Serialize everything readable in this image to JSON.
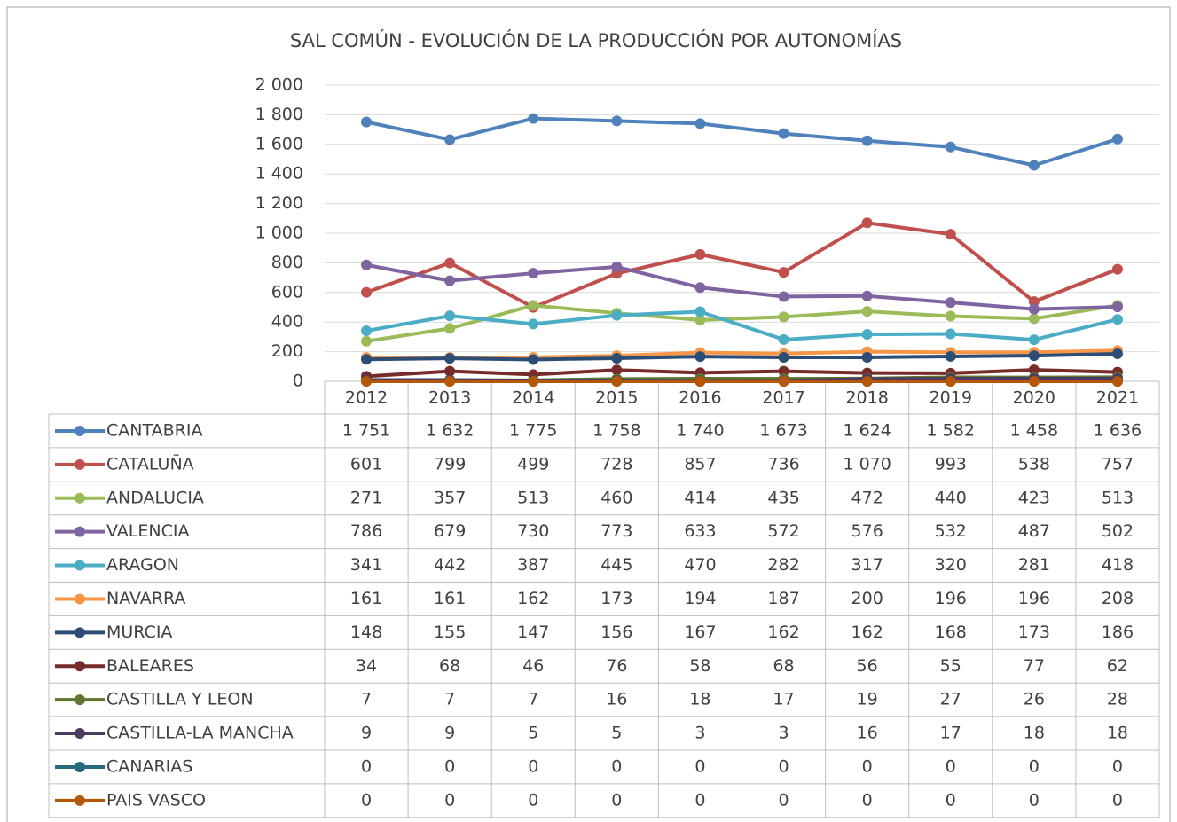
{
  "chart_data": {
    "type": "line",
    "title": "SAL COMÚN - EVOLUCIÓN DE LA PRODUCCIÓN POR AUTONOMÍAS",
    "categories": [
      "2012",
      "2013",
      "2014",
      "2015",
      "2016",
      "2017",
      "2018",
      "2019",
      "2020",
      "2021"
    ],
    "ylim": [
      0,
      2000
    ],
    "yticks": [
      0,
      {
        "value": 200,
        "label": "200"
      },
      {
        "value": 400,
        "label": "400"
      },
      {
        "value": 600,
        "label": "600"
      },
      {
        "value": 800,
        "label": "800"
      },
      {
        "value": 1000,
        "label": "1 000"
      },
      {
        "value": 1200,
        "label": "1 200"
      },
      {
        "value": 1400,
        "label": "1 400"
      },
      {
        "value": 1600,
        "label": "1 600"
      },
      {
        "value": 1800,
        "label": "1 800"
      },
      {
        "value": 2000,
        "label": "2 000"
      }
    ],
    "grid": true,
    "series": [
      {
        "name": "CANTABRIA",
        "color": "#4f81bd",
        "values": [
          1751,
          1632,
          1775,
          1758,
          1740,
          1673,
          1624,
          1582,
          1458,
          1636
        ],
        "value_labels": [
          "1 751",
          "1 632",
          "1 775",
          "1 758",
          "1 740",
          "1 673",
          "1 624",
          "1 582",
          "1 458",
          "1 636"
        ]
      },
      {
        "name": "CATALUÑA",
        "color": "#c0504d",
        "values": [
          601,
          799,
          499,
          728,
          857,
          736,
          1070,
          993,
          538,
          757
        ],
        "value_labels": [
          "601",
          "799",
          "499",
          "728",
          "857",
          "736",
          "1 070",
          "993",
          "538",
          "757"
        ]
      },
      {
        "name": "ANDALUCIA",
        "color": "#9bbb59",
        "values": [
          271,
          357,
          513,
          460,
          414,
          435,
          472,
          440,
          423,
          513
        ]
      },
      {
        "name": "VALENCIA",
        "color": "#8064a2",
        "values": [
          786,
          679,
          730,
          773,
          633,
          572,
          576,
          532,
          487,
          502
        ]
      },
      {
        "name": "ARAGON",
        "color": "#4bacc6",
        "values": [
          341,
          442,
          387,
          445,
          470,
          282,
          317,
          320,
          281,
          418
        ]
      },
      {
        "name": "NAVARRA",
        "color": "#f79646",
        "values": [
          161,
          161,
          162,
          173,
          194,
          187,
          200,
          196,
          196,
          208
        ]
      },
      {
        "name": "MURCIA",
        "color": "#2c4d75",
        "values": [
          148,
          155,
          147,
          156,
          167,
          162,
          162,
          168,
          173,
          186
        ]
      },
      {
        "name": "BALEARES",
        "color": "#772c2a",
        "values": [
          34,
          68,
          46,
          76,
          58,
          68,
          56,
          55,
          77,
          62
        ]
      },
      {
        "name": "CASTILLA Y LEON",
        "color": "#5f7530",
        "values": [
          7,
          7,
          7,
          16,
          18,
          17,
          19,
          27,
          26,
          28
        ]
      },
      {
        "name": "CASTILLA-LA MANCHA",
        "color": "#4d3b62",
        "values": [
          9,
          9,
          5,
          5,
          3,
          3,
          16,
          17,
          18,
          18
        ]
      },
      {
        "name": "CANARIAS",
        "color": "#276a7c",
        "values": [
          0,
          0,
          0,
          0,
          0,
          0,
          0,
          0,
          0,
          0
        ]
      },
      {
        "name": "PAIS VASCO",
        "color": "#b65708",
        "values": [
          0,
          0,
          0,
          0,
          0,
          0,
          0,
          0,
          0,
          0
        ]
      }
    ]
  }
}
